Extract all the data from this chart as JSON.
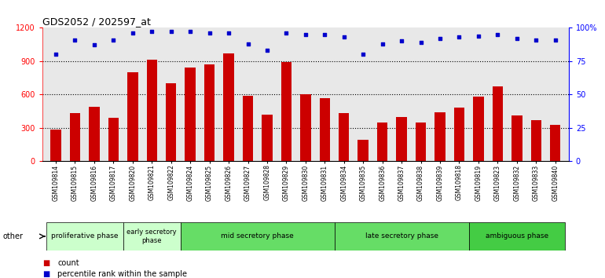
{
  "title": "GDS2052 / 202597_at",
  "samples": [
    "GSM109814",
    "GSM109815",
    "GSM109816",
    "GSM109817",
    "GSM109820",
    "GSM109821",
    "GSM109822",
    "GSM109824",
    "GSM109825",
    "GSM109826",
    "GSM109827",
    "GSM109828",
    "GSM109829",
    "GSM109830",
    "GSM109831",
    "GSM109834",
    "GSM109835",
    "GSM109836",
    "GSM109837",
    "GSM109838",
    "GSM109839",
    "GSM109818",
    "GSM109819",
    "GSM109823",
    "GSM109832",
    "GSM109833",
    "GSM109840"
  ],
  "counts": [
    285,
    430,
    490,
    390,
    800,
    910,
    700,
    840,
    870,
    970,
    590,
    420,
    890,
    600,
    570,
    430,
    195,
    350,
    400,
    350,
    440,
    480,
    580,
    670,
    410,
    370,
    330
  ],
  "percentiles": [
    80,
    91,
    87,
    91,
    96,
    97,
    97,
    97,
    96,
    96,
    88,
    83,
    96,
    95,
    95,
    93,
    80,
    88,
    90,
    89,
    92,
    93,
    94,
    95,
    92,
    91,
    91
  ],
  "bar_color": "#cc0000",
  "dot_color": "#0000cc",
  "bg_color": "#e8e8e8",
  "phase_data": [
    {
      "label": "proliferative phase",
      "start": 0,
      "end": 4,
      "color": "#ccffcc"
    },
    {
      "label": "early secretory\nphase",
      "start": 4,
      "end": 7,
      "color": "#ccffcc"
    },
    {
      "label": "mid secretory phase",
      "start": 7,
      "end": 15,
      "color": "#66dd66"
    },
    {
      "label": "late secretory phase",
      "start": 15,
      "end": 22,
      "color": "#66dd66"
    },
    {
      "label": "ambiguous phase",
      "start": 22,
      "end": 27,
      "color": "#44cc44"
    }
  ],
  "legend_count_label": "count",
  "legend_pct_label": "percentile rank within the sample"
}
